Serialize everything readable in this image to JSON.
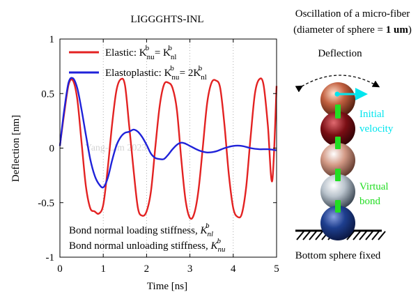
{
  "chart_data": {
    "type": "line",
    "title": "LIGGGHTS-INL",
    "xlabel": "Time [ns]",
    "ylabel": "Deflection [nm]",
    "xlim": [
      0,
      5
    ],
    "ylim": [
      -1,
      1
    ],
    "xticks": [
      0,
      1,
      2,
      3,
      4,
      5
    ],
    "yticks": [
      -1,
      -0.5,
      0,
      0.5,
      1
    ],
    "ytick_labels": [
      "-1",
      "-0.5",
      "0",
      "0.5",
      "1"
    ],
    "grid": "dotted vertical lines",
    "legend_position": "top-left",
    "watermark": "Yang-Lim 2023",
    "series": [
      {
        "name": "Elastic",
        "legend_prefix": "Elastic: K",
        "legend_mid": " = K",
        "legend_coef": "",
        "sub1": "nu",
        "sup1": "b",
        "sub2": "nl",
        "sup2": "b",
        "color": "#e32222",
        "x": [
          0,
          0.1,
          0.2,
          0.3,
          0.4,
          0.5,
          0.6,
          0.7,
          0.8,
          0.9,
          1.0,
          1.1,
          1.2,
          1.3,
          1.4,
          1.5,
          1.6,
          1.7,
          1.8,
          1.9,
          2.0,
          2.1,
          2.2,
          2.3,
          2.4,
          2.5,
          2.6,
          2.7,
          2.8,
          2.9,
          3.0,
          3.1,
          3.2,
          3.3,
          3.4,
          3.5,
          3.6,
          3.7,
          3.8,
          3.9,
          4.0,
          4.1,
          4.2,
          4.3,
          4.4,
          4.5,
          4.6,
          4.7,
          4.8,
          4.9,
          5.0
        ],
        "y": [
          0.02,
          0.32,
          0.58,
          0.62,
          0.45,
          0.05,
          -0.35,
          -0.55,
          -0.58,
          -0.6,
          -0.52,
          -0.2,
          0.2,
          0.52,
          0.63,
          0.58,
          0.2,
          -0.2,
          -0.55,
          -0.62,
          -0.58,
          -0.4,
          0.0,
          0.38,
          0.58,
          0.6,
          0.55,
          0.35,
          -0.1,
          -0.48,
          -0.64,
          -0.6,
          -0.38,
          0.02,
          0.42,
          0.6,
          0.62,
          0.55,
          0.2,
          -0.25,
          -0.55,
          -0.63,
          -0.6,
          -0.35,
          0.1,
          0.5,
          0.63,
          0.58,
          0.2,
          -0.3,
          0.57
        ]
      },
      {
        "name": "Elastoplastic",
        "legend_prefix": "Elastoplastic: K",
        "legend_mid": " = 2K",
        "legend_coef": "2",
        "sub1": "nu",
        "sup1": "b",
        "sub2": "nl",
        "sup2": "b",
        "color": "#1f22d9",
        "x": [
          0,
          0.1,
          0.2,
          0.3,
          0.4,
          0.5,
          0.6,
          0.7,
          0.8,
          0.9,
          1.0,
          1.1,
          1.2,
          1.3,
          1.4,
          1.5,
          1.6,
          1.7,
          1.8,
          1.9,
          2.0,
          2.1,
          2.2,
          2.3,
          2.4,
          2.5,
          2.6,
          2.7,
          2.8,
          2.9,
          3.0,
          3.2,
          3.4,
          3.6,
          3.8,
          4.0,
          4.2,
          4.4,
          4.6,
          4.8,
          5.0
        ],
        "y": [
          0.02,
          0.35,
          0.6,
          0.64,
          0.55,
          0.35,
          0.12,
          -0.1,
          -0.25,
          -0.33,
          -0.36,
          -0.28,
          -0.12,
          0.02,
          0.1,
          0.14,
          0.15,
          0.17,
          0.15,
          0.1,
          0.03,
          -0.05,
          -0.09,
          -0.1,
          -0.1,
          -0.06,
          -0.01,
          0.03,
          0.05,
          0.04,
          0.02,
          -0.02,
          -0.04,
          -0.03,
          0.0,
          0.02,
          0.02,
          0.0,
          -0.01,
          -0.01,
          -0.02
        ]
      }
    ],
    "annotations": {
      "line1_text": "Bond normal loading stiffness, ",
      "line1_k": "K",
      "line1_sub": "nl",
      "line1_sup": "b",
      "line2_text": "Bond normal unloading stiffness, ",
      "line2_k": "K",
      "line2_sub": "nu",
      "line2_sup": "b"
    }
  },
  "schematic": {
    "title_line1": "Oscillation of a micro-fiber",
    "title_line2_prefix": "(diameter of sphere = ",
    "title_line2_bold": "1 um",
    "title_line2_suffix": ")",
    "deflection_label": "Deflection",
    "initial_velocity_label": [
      "Initial",
      "velocity"
    ],
    "virtual_bond_label": [
      "Virtual",
      "bond"
    ],
    "bottom_label": "Bottom sphere fixed",
    "colors": {
      "arrow": "#00e5ee",
      "bond": "#22dd22",
      "sphere1": "#c26040",
      "sphere2": "#7a0e14",
      "sphere3": "#d39a86",
      "sphere4": "#b9c3cc",
      "sphere5": "#1e3f8f"
    }
  }
}
